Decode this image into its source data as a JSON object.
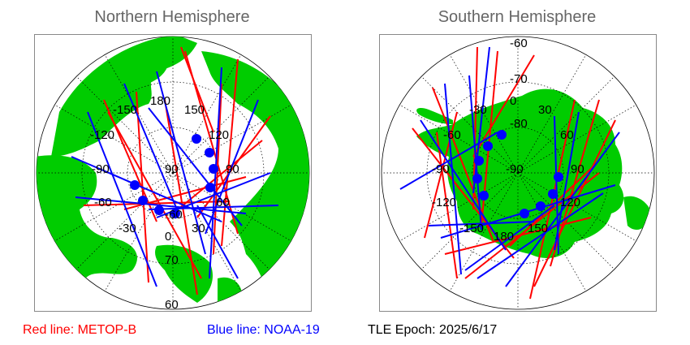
{
  "north": {
    "title": "Northern Hemisphere",
    "lon_labels": [
      "-150",
      "180",
      "150",
      "-120",
      "120",
      "-90",
      "90",
      "90",
      "-60",
      "60",
      "-30",
      "30",
      "0",
      "-60"
    ],
    "lat_labels": [
      "70",
      "60"
    ]
  },
  "south": {
    "title": "Southern Hemisphere",
    "lon_labels": [
      "-30",
      "0",
      "30",
      "-60",
      "60",
      "-90",
      "90",
      "-90",
      "-120",
      "120",
      "-150",
      "180",
      "150"
    ],
    "lat_labels": [
      "-60",
      "-70",
      "-80"
    ]
  },
  "legend": {
    "red_label": "Red line: METOP-B",
    "blue_label": "Blue line: NOAA-19",
    "epoch_label": "TLE Epoch: 2025/6/17"
  },
  "colors": {
    "land": "#00cc00",
    "ocean": "#ffffff",
    "metop": "#ff0000",
    "noaa": "#0000ff",
    "grid": "#000000"
  }
}
